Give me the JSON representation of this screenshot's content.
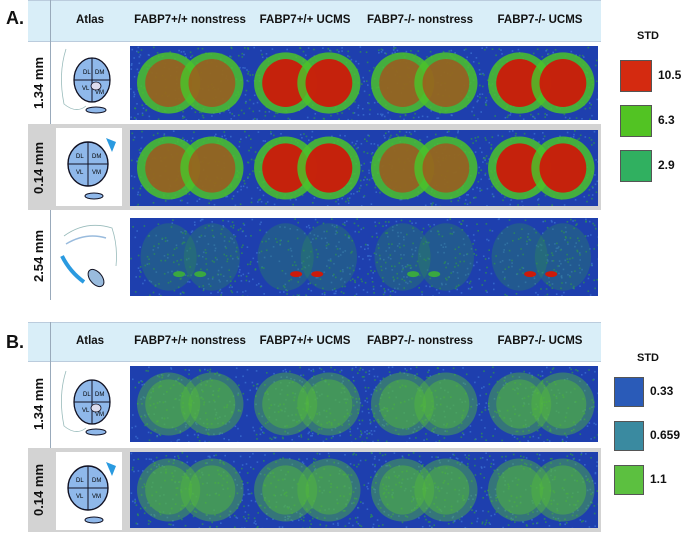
{
  "panels": [
    {
      "letter": "A.",
      "columns": [
        "Atlas",
        "FABP7+/+ nonstress",
        "FABP7+/+ UCMS",
        "FABP7-/- nonstress",
        "FABP7-/- UCMS"
      ],
      "rows": [
        {
          "label": "1.34 mm",
          "atlas_labels": [
            "DL",
            "DM",
            "VL",
            "VM"
          ],
          "intensity": [
            "medium",
            "high",
            "medium",
            "high"
          ]
        },
        {
          "label": "0.14 mm",
          "atlas_labels": [
            "DL",
            "DM",
            "VL",
            "VM"
          ],
          "intensity": [
            "medium",
            "high",
            "medium",
            "high"
          ]
        },
        {
          "label": "2.54 mm",
          "atlas_labels": [],
          "intensity": [
            "low",
            "low",
            "low",
            "low"
          ]
        }
      ],
      "legend": {
        "title": "STD",
        "items": [
          {
            "value": "10.5",
            "color": "#d42a10"
          },
          {
            "value": "6.3",
            "color": "#52c323"
          },
          {
            "value": "2.9",
            "color": "#30b060"
          }
        ]
      }
    },
    {
      "letter": "B.",
      "columns": [
        "Atlas",
        "FABP7+/+ nonstress",
        "FABP7+/+ UCMS",
        "FABP7-/- nonstress",
        "FABP7-/- UCMS"
      ],
      "rows": [
        {
          "label": "1.34 mm",
          "atlas_labels": [
            "DL",
            "DM",
            "VL",
            "VM"
          ],
          "intensity": [
            "faint",
            "faint",
            "faint",
            "faint"
          ]
        },
        {
          "label": "0.14 mm",
          "atlas_labels": [
            "DL",
            "DM",
            "VL",
            "VM"
          ],
          "intensity": [
            "faint",
            "faint",
            "faint",
            "faint"
          ]
        }
      ],
      "legend": {
        "title": "STD",
        "items": [
          {
            "value": "0.33",
            "color": "#2a5bb8"
          },
          {
            "value": "0.659",
            "color": "#3a8aa0"
          },
          {
            "value": "1.1",
            "color": "#5cc040"
          }
        ]
      }
    }
  ]
}
